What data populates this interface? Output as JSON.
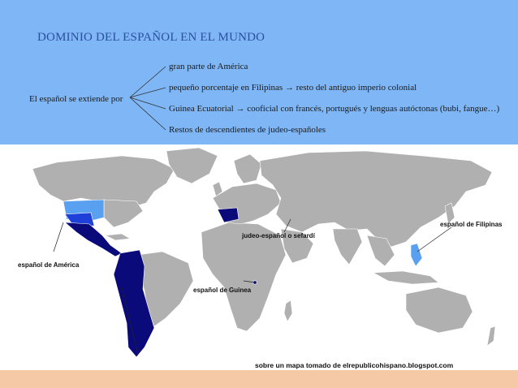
{
  "header": {
    "title": "DOMINIO DEL ESPAÑOL EN EL MUNDO",
    "lead": "El español se extiende por",
    "branches": [
      "gran parte de América",
      "pequeño porcentaje en Filipinas  → resto del antiguo imperio colonial",
      "Guinea Ecuatorial  → cooficial con francés, portugués y lenguas   autóctonas (bubi, fangue…)",
      "Restos de descendientes de judeo-españoles"
    ]
  },
  "map": {
    "labels": {
      "america": "español de América",
      "guinea": "español de Guinea",
      "sefardi": "judeo-español o sefardí",
      "filipinas": "español de Filipinas"
    },
    "credit": "sobre un mapa tomado de elrepublicohispano.blogspot.com"
  },
  "colors": {
    "header_bg": "#7fb6f5",
    "title": "#2a4fa0",
    "land": "#b0b0b0",
    "spanish_dark": "#0a0a7a",
    "spanish_mid": "#1e3fd8",
    "spanish_light": "#5aa0f0",
    "footer_bg": "#f6c9a6"
  }
}
